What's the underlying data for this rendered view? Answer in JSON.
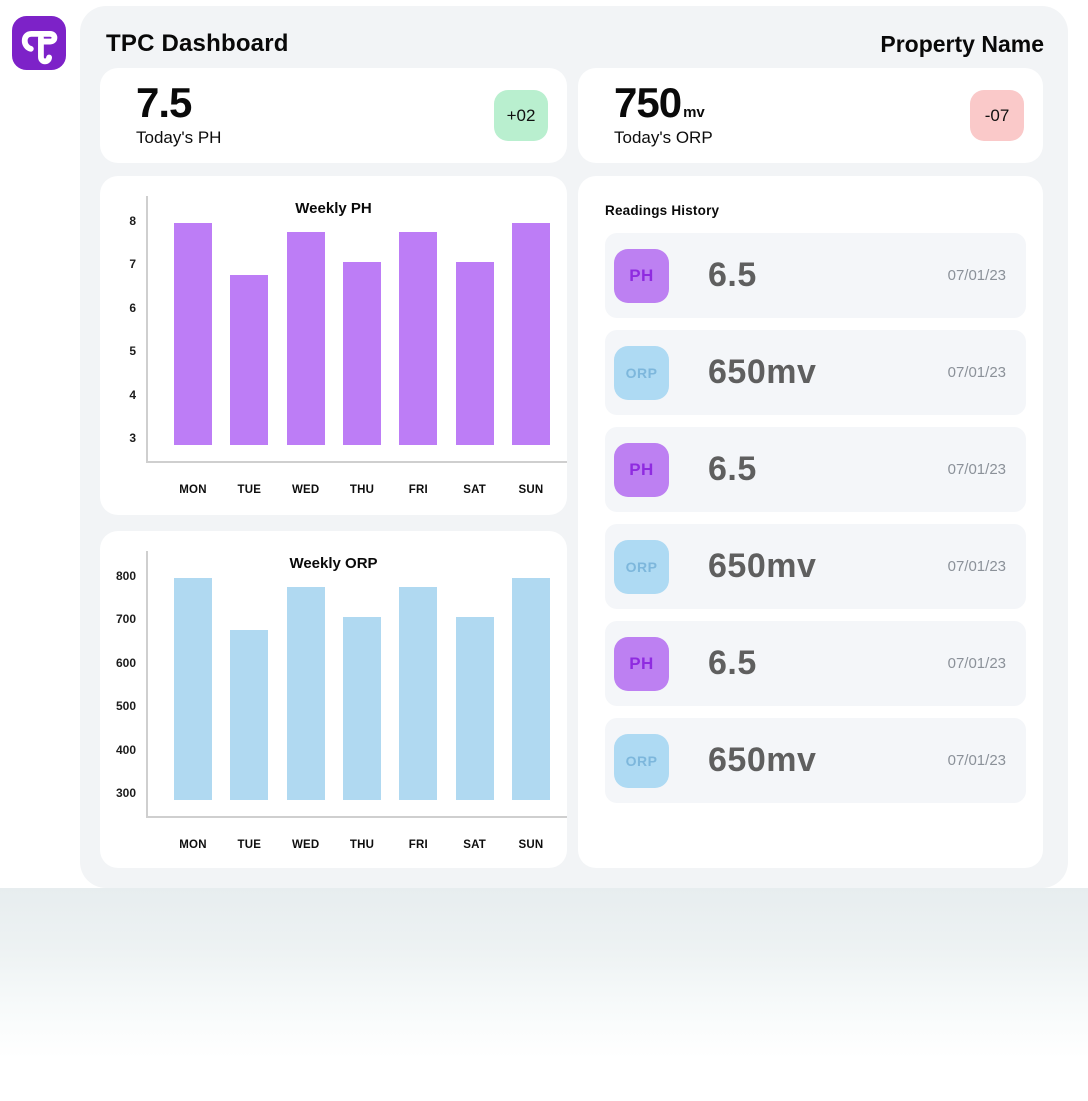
{
  "header": {
    "title": "TPC Dashboard",
    "property_name": "Property Name"
  },
  "stats": {
    "ph": {
      "value": "7.5",
      "unit": "",
      "label": "Today's PH",
      "delta": "+02"
    },
    "orp": {
      "value": "750",
      "unit": "mv",
      "label": "Today's ORP",
      "delta": "-07"
    }
  },
  "chart_data": [
    {
      "type": "bar",
      "title": "Weekly PH",
      "categories": [
        "MON",
        "TUE",
        "WED",
        "THU",
        "FRI",
        "SAT",
        "SUN"
      ],
      "values": [
        7.75,
        6.55,
        7.55,
        6.85,
        7.55,
        6.85,
        7.75
      ],
      "yticks": [
        8,
        7,
        6,
        5,
        4,
        3
      ],
      "ylim": [
        2.6,
        8.4
      ],
      "xlabel": "",
      "ylabel": "",
      "grid": false,
      "legend": "none",
      "bar_color": "#bd7df6"
    },
    {
      "type": "bar",
      "title": "Weekly ORP",
      "categories": [
        "MON",
        "TUE",
        "WED",
        "THU",
        "FRI",
        "SAT",
        "SUN"
      ],
      "values": [
        775,
        655,
        755,
        685,
        755,
        685,
        775
      ],
      "yticks": [
        800,
        700,
        600,
        500,
        400,
        300
      ],
      "ylim": [
        260,
        840
      ],
      "xlabel": "",
      "ylabel": "",
      "grid": false,
      "legend": "none",
      "bar_color": "#b0d9f1"
    }
  ],
  "readings": {
    "title": "Readings History",
    "rows": [
      {
        "badge": "PH",
        "value": "6.5",
        "unit": "",
        "date": "07/01/23"
      },
      {
        "badge": "ORP",
        "value": "650",
        "unit": "mv",
        "date": "07/01/23"
      },
      {
        "badge": "PH",
        "value": "6.5",
        "unit": "",
        "date": "07/01/23"
      },
      {
        "badge": "ORP",
        "value": "650",
        "unit": "mv",
        "date": "07/01/23"
      },
      {
        "badge": "PH",
        "value": "6.5",
        "unit": "",
        "date": "07/01/23"
      },
      {
        "badge": "ORP",
        "value": "650",
        "unit": "mv",
        "date": "07/01/23"
      }
    ]
  },
  "colors": {
    "logo_bg": "#7d22c8",
    "positive_badge_bg": "#b9efcf",
    "negative_badge_bg": "#fac9c9",
    "ph_bar": "#bd7df6",
    "orp_bar": "#b0d9f1",
    "ph_badge_bg": "#bd80f2",
    "ph_badge_text": "#8f2be0",
    "orp_badge_bg": "#aedaf3",
    "orp_badge_text": "#7db7dc"
  }
}
